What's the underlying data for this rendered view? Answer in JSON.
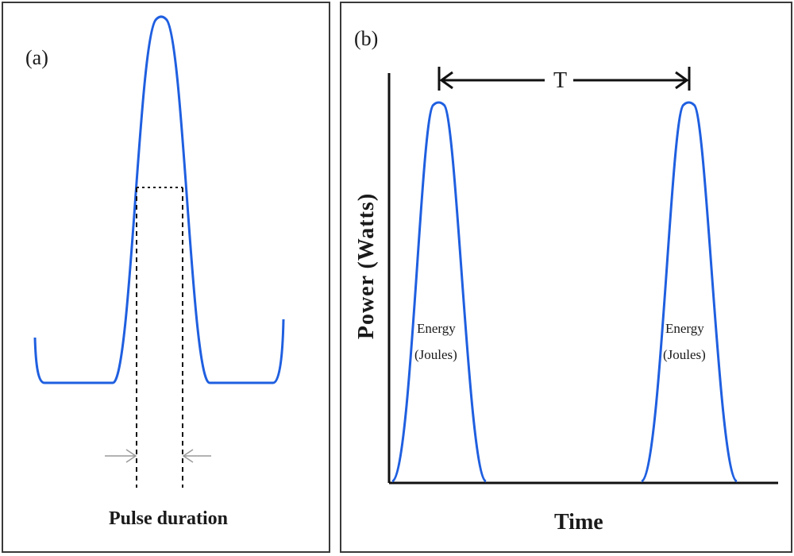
{
  "panel_a": {
    "label": "(a)",
    "caption": "Pulse duration"
  },
  "panel_b": {
    "label": "(b)",
    "period_label": "T",
    "y_axis_label": "Power (Watts)",
    "x_axis_label": "Time",
    "pulses": [
      {
        "energy_label": "Energy",
        "unit_label": "(Joules)"
      },
      {
        "energy_label": "Energy",
        "unit_label": "(Joules)"
      }
    ]
  },
  "colors": {
    "pulse": "#1f5fe0",
    "axis": "#111111",
    "border": "#3a3a3a",
    "arrow_grey": "#9a9a9a"
  }
}
